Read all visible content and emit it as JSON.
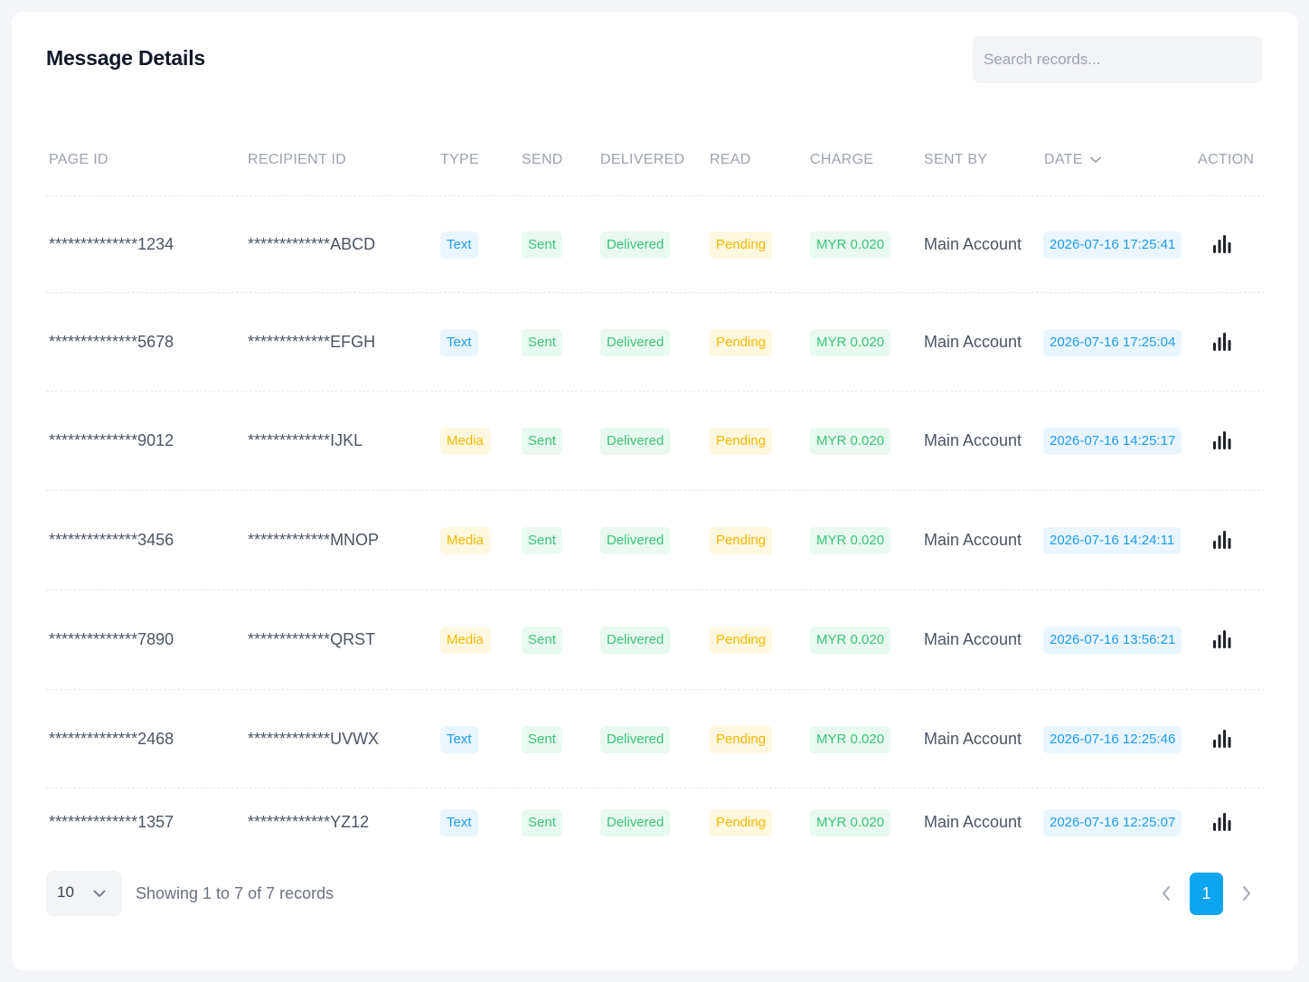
{
  "header": {
    "title": "Message Details",
    "search_placeholder": "Search records..."
  },
  "table": {
    "columns": {
      "page_id": "PAGE ID",
      "recipient_id": "RECIPIENT ID",
      "type": "TYPE",
      "send": "SEND",
      "delivered": "DELIVERED",
      "read": "READ",
      "charge": "CHARGE",
      "sent_by": "SENT BY",
      "date": "DATE",
      "action": "ACTION"
    },
    "date_sort_icon": "chevron-down-icon",
    "action_icon": "bar-chart-icon",
    "rows": [
      {
        "page_id": "**************1234",
        "recipient_id": "*************ABCD",
        "type": "Text",
        "type_kind": "text",
        "send": "Sent",
        "delivered": "Delivered",
        "read": "Pending",
        "charge": "MYR 0.020",
        "sent_by": "Main Account",
        "date": "2026-07-16 17:25:41"
      },
      {
        "page_id": "**************5678",
        "recipient_id": "*************EFGH",
        "type": "Text",
        "type_kind": "text",
        "send": "Sent",
        "delivered": "Delivered",
        "read": "Pending",
        "charge": "MYR 0.020",
        "sent_by": "Main Account",
        "date": "2026-07-16 17:25:04"
      },
      {
        "page_id": "**************9012",
        "recipient_id": "*************IJKL",
        "type": "Media",
        "type_kind": "media",
        "send": "Sent",
        "delivered": "Delivered",
        "read": "Pending",
        "charge": "MYR 0.020",
        "sent_by": "Main Account",
        "date": "2026-07-16 14:25:17"
      },
      {
        "page_id": "**************3456",
        "recipient_id": "*************MNOP",
        "type": "Media",
        "type_kind": "media",
        "send": "Sent",
        "delivered": "Delivered",
        "read": "Pending",
        "charge": "MYR 0.020",
        "sent_by": "Main Account",
        "date": "2026-07-16 14:24:11"
      },
      {
        "page_id": "**************7890",
        "recipient_id": "*************QRST",
        "type": "Media",
        "type_kind": "media",
        "send": "Sent",
        "delivered": "Delivered",
        "read": "Pending",
        "charge": "MYR 0.020",
        "sent_by": "Main Account",
        "date": "2026-07-16 13:56:21"
      },
      {
        "page_id": "**************2468",
        "recipient_id": "*************UVWX",
        "type": "Text",
        "type_kind": "text",
        "send": "Sent",
        "delivered": "Delivered",
        "read": "Pending",
        "charge": "MYR 0.020",
        "sent_by": "Main Account",
        "date": "2026-07-16 12:25:46"
      },
      {
        "page_id": "**************1357",
        "recipient_id": "*************YZ12",
        "type": "Text",
        "type_kind": "text",
        "send": "Sent",
        "delivered": "Delivered",
        "read": "Pending",
        "charge": "MYR 0.020",
        "sent_by": "Main Account",
        "date": "2026-07-16 12:25:07"
      }
    ]
  },
  "colors": {
    "accent": "#0ea5f0",
    "text_badge": "#1e9bf0",
    "media_badge": "#f5b800",
    "success_badge": "#3cc476",
    "pending_badge": "#f5b800"
  },
  "footer": {
    "page_size": "10",
    "showing_text": "Showing 1 to 7 of 7 records",
    "current_page": "1",
    "prev_icon": "chevron-left-icon",
    "next_icon": "chevron-right-icon"
  }
}
